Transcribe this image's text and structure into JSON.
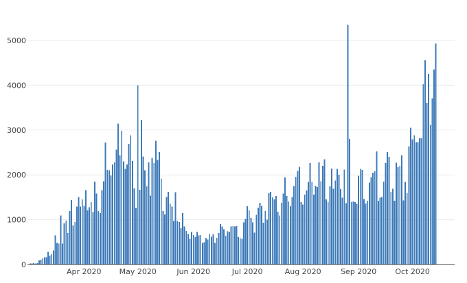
{
  "chart_data": {
    "type": "bar",
    "title": "",
    "xlabel": "",
    "ylabel": "",
    "ylim": [
      0,
      5500
    ],
    "y_ticks": [
      0,
      1000,
      2000,
      3000,
      4000,
      5000
    ],
    "y_tick_labels": [
      "0",
      "1000",
      "2000",
      "3000",
      "4000",
      "5000"
    ],
    "x_ticks": [
      {
        "date": "2020-04-01",
        "label": "Apr 2020"
      },
      {
        "date": "2020-05-01",
        "label": "May 2020"
      },
      {
        "date": "2020-06-01",
        "label": "Jun 2020"
      },
      {
        "date": "2020-07-01",
        "label": "Jul 2020"
      },
      {
        "date": "2020-08-01",
        "label": "Aug 2020"
      },
      {
        "date": "2020-09-01",
        "label": "Sep 2020"
      },
      {
        "date": "2020-10-01",
        "label": "Oct 2020"
      }
    ],
    "start_date": "2020-03-01",
    "end_date": "2020-10-24",
    "values": [
      10,
      20,
      20,
      30,
      20,
      30,
      90,
      110,
      140,
      160,
      160,
      280,
      200,
      230,
      310,
      650,
      480,
      470,
      1090,
      470,
      920,
      980,
      700,
      1190,
      1440,
      870,
      950,
      1290,
      1510,
      1290,
      1450,
      1310,
      1660,
      1210,
      1280,
      1390,
      1170,
      1850,
      1580,
      1190,
      1150,
      1660,
      1860,
      2720,
      2110,
      2100,
      1990,
      2230,
      2280,
      2560,
      3140,
      2440,
      2980,
      2300,
      2130,
      2230,
      2690,
      2880,
      2310,
      1700,
      1260,
      4000,
      1670,
      3230,
      2410,
      2100,
      1740,
      2280,
      1540,
      2380,
      2260,
      2760,
      2330,
      2510,
      1920,
      1190,
      1120,
      1510,
      1620,
      1360,
      1290,
      970,
      1610,
      970,
      950,
      810,
      1150,
      850,
      750,
      680,
      570,
      730,
      660,
      610,
      730,
      650,
      660,
      480,
      500,
      590,
      560,
      680,
      620,
      670,
      480,
      600,
      700,
      900,
      850,
      790,
      640,
      740,
      730,
      850,
      860,
      850,
      860,
      610,
      590,
      570,
      940,
      1020,
      1300,
      1210,
      1040,
      940,
      710,
      1110,
      1270,
      1380,
      1310,
      930,
      1190,
      1000,
      1590,
      1620,
      1500,
      1450,
      1530,
      1180,
      1090,
      1380,
      1580,
      1940,
      1530,
      1410,
      1300,
      1510,
      1750,
      1960,
      2090,
      2180,
      1390,
      1340,
      1560,
      1650,
      1840,
      2260,
      1840,
      1560,
      1760,
      1730,
      2280,
      1860,
      2200,
      2350,
      1450,
      1390,
      1740,
      2140,
      1690,
      1870,
      2130,
      2000,
      1680,
      1490,
      2120,
      1370,
      5350,
      2800,
      1390,
      1410,
      1390,
      1350,
      1980,
      2130,
      2110,
      1460,
      1360,
      1420,
      1830,
      1950,
      2050,
      2080,
      2520,
      1420,
      1490,
      1510,
      1850,
      2260,
      2510,
      2400,
      1620,
      1690,
      1420,
      2270,
      2170,
      2200,
      2440,
      1430,
      1840,
      1600,
      2640,
      3050,
      2790,
      2880,
      2730,
      2730,
      2820,
      2820,
      4020,
      4560,
      3610,
      4250,
      3120,
      3710,
      4350,
      4930
    ],
    "bar_color": "#3d7ab8",
    "grid": true,
    "legend": "none"
  }
}
